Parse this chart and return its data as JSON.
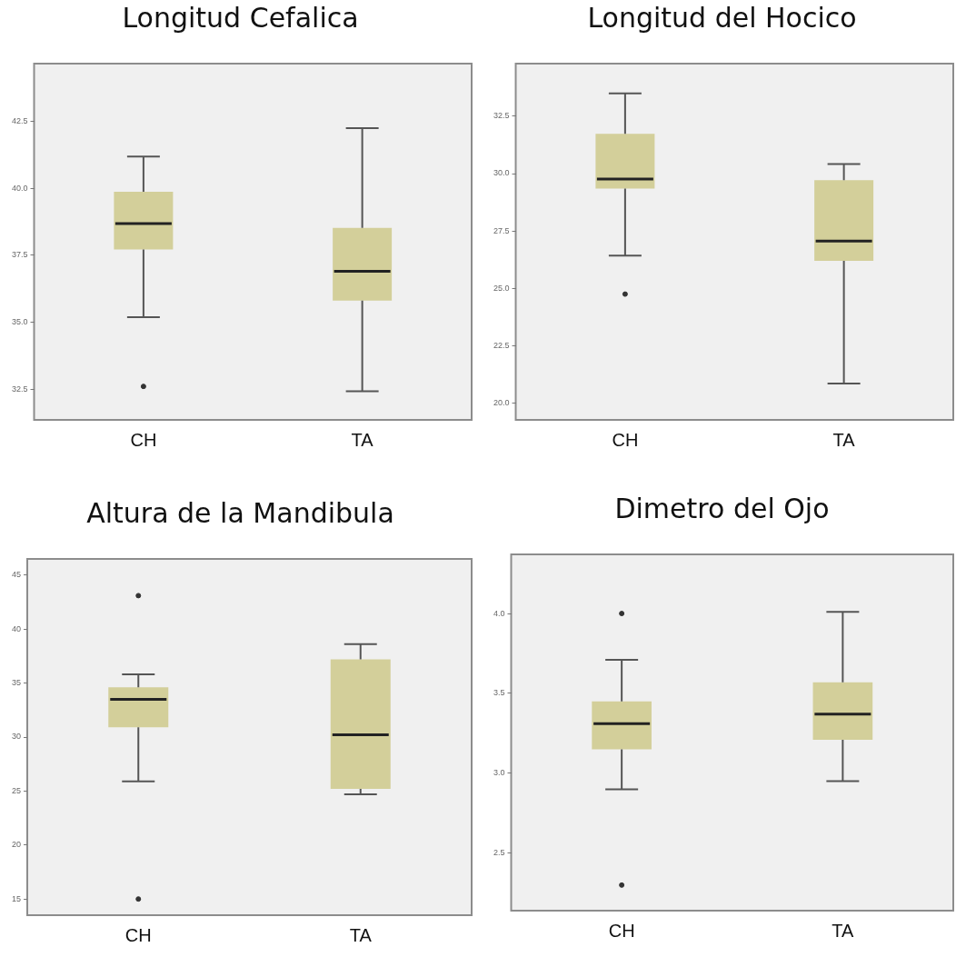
{
  "chart_data": [
    {
      "type": "box",
      "title": "Longitud Cefalica",
      "categories": [
        "CH",
        "TA"
      ],
      "grid": false,
      "ylim": [
        31.35,
        44.65
      ],
      "yticks": [
        {
          "value": 32.5,
          "label": "32.5"
        },
        {
          "value": 35,
          "label": "35.0"
        },
        {
          "value": 37.5,
          "label": "37.5"
        },
        {
          "value": 40,
          "label": "40.0"
        },
        {
          "value": 42.5,
          "label": "42.5"
        }
      ],
      "series": [
        {
          "color": "#d3cf9a",
          "boxes": [
            {
              "low": 35.18,
              "q1": 37.71,
              "median": 38.68,
              "q3": 39.87,
              "high": 41.18,
              "outliers": [
                32.6
              ]
            },
            {
              "low": 32.42,
              "q1": 35.8,
              "median": 36.9,
              "q3": 38.52,
              "high": 42.24
            }
          ]
        }
      ]
    },
    {
      "type": "box",
      "title": "Longitud del Hocico",
      "categories": [
        "CH",
        "TA"
      ],
      "grid": false,
      "ylim": [
        19.25,
        34.8
      ],
      "yticks": [
        {
          "value": 20,
          "label": "20.0"
        },
        {
          "value": 22.5,
          "label": "22.5"
        },
        {
          "value": 25,
          "label": "25.0"
        },
        {
          "value": 27.5,
          "label": "27.5"
        },
        {
          "value": 30,
          "label": "30.0"
        },
        {
          "value": 32.5,
          "label": "32.5"
        }
      ],
      "series": [
        {
          "color": "#d3cf9a",
          "boxes": [
            {
              "low": 26.42,
              "q1": 29.35,
              "median": 29.76,
              "q3": 31.74,
              "high": 33.5,
              "outliers": [
                24.74
              ]
            },
            {
              "low": 20.84,
              "q1": 26.19,
              "median": 27.05,
              "q3": 29.71,
              "high": 30.42
            }
          ]
        }
      ]
    },
    {
      "type": "box",
      "title": "Altura de la Mandibula",
      "categories": [
        "CH",
        "TA"
      ],
      "grid": false,
      "ylim": [
        13.5,
        46.5
      ],
      "yticks": [
        15,
        20,
        25,
        30,
        35,
        40,
        45
      ],
      "series": [
        {
          "color": "#d3cf9a",
          "boxes": [
            {
              "low": 25.9,
              "q1": 30.9,
              "median": 33.5,
              "q3": 34.6,
              "high": 35.8,
              "outliers": [
                43.1,
                15
              ]
            },
            {
              "low": 24.7,
              "q1": 25.2,
              "median": 30.2,
              "q3": 37.2,
              "high": 38.6
            }
          ]
        }
      ]
    },
    {
      "type": "box",
      "title": "Dimetro del Ojo",
      "categories": [
        "CH",
        "TA"
      ],
      "grid": false,
      "ylim": [
        2.14,
        4.37
      ],
      "yticks": [
        {
          "value": 2.5,
          "label": "2.5"
        },
        {
          "value": 3,
          "label": "3.0"
        },
        {
          "value": 3.5,
          "label": "3.5"
        },
        {
          "value": 4,
          "label": "4.0"
        }
      ],
      "series": [
        {
          "color": "#d3cf9a",
          "boxes": [
            {
              "low": 2.9,
              "q1": 3.15,
              "median": 3.31,
              "q3": 3.45,
              "high": 3.71,
              "outliers": [
                4.0,
                2.3
              ]
            },
            {
              "low": 2.95,
              "q1": 3.21,
              "median": 3.37,
              "q3": 3.57,
              "high": 4.01
            }
          ]
        }
      ]
    }
  ]
}
